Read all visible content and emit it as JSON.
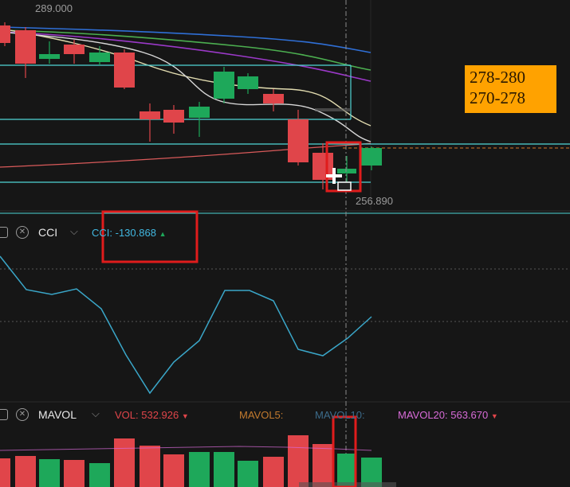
{
  "price_chart": {
    "high_label": "289.000",
    "low_label": "256.890",
    "annotation": {
      "line1": "278-280",
      "line2": "270-278"
    },
    "colors": {
      "up": "#1ea85a",
      "down": "#e0454a",
      "cyan": "#4fd6d6"
    }
  },
  "cci_panel": {
    "name": "CCI",
    "value_label": "CCI: ",
    "value": "-130.868",
    "colors": {
      "line": "#3aa6c8",
      "value": "#41b7e0"
    }
  },
  "vol_panel": {
    "name": "MAVOL",
    "vol_label": "VOL: ",
    "vol_value": "532.926",
    "mavol5_label": "MAVOL5:",
    "mavol10_label": "MAVOL10:",
    "mavol20_label": "MAVOL20: ",
    "mavol20_value": "563.670",
    "colors": {
      "vol": "#e0454a",
      "mavol5": "#c27a2e",
      "mavol10": "#3c6b8a",
      "mavol20": "#d86bd8"
    }
  },
  "icons": [
    "close-icon",
    "chevron-down-icon",
    "triangle-up-icon",
    "triangle-down-icon",
    "crosshair-cursor-icon"
  ]
}
